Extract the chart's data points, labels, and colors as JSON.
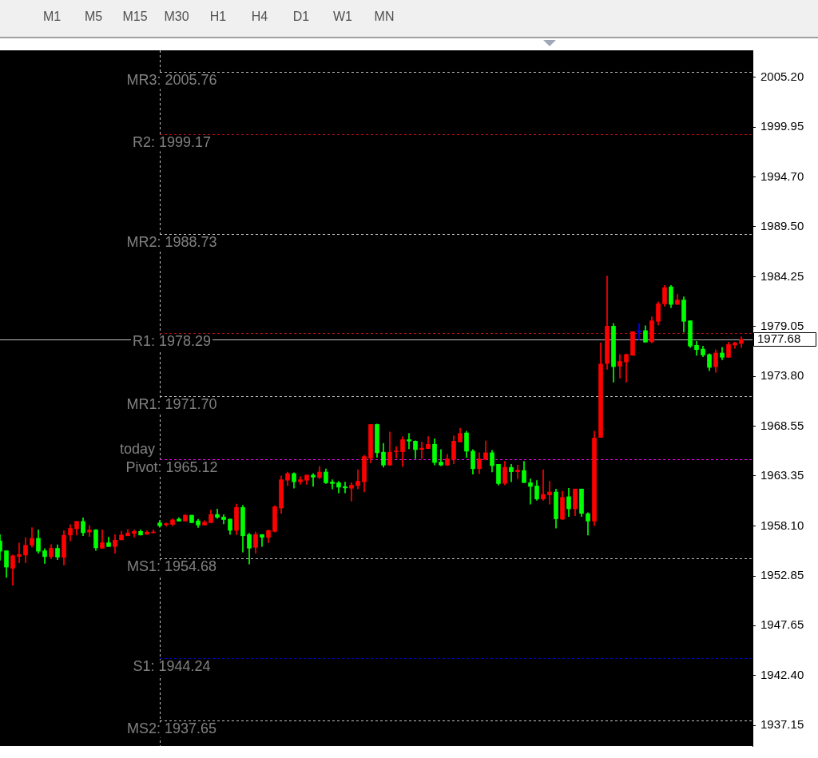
{
  "chart_data": {
    "type": "candlestick",
    "categories": [
      null,
      null,
      null,
      null,
      null,
      null,
      null,
      null,
      null,
      null,
      null,
      null,
      null,
      null,
      null,
      null,
      null,
      null,
      null,
      null,
      null,
      null,
      null,
      null,
      null,
      null,
      null,
      null,
      null,
      null,
      null,
      null,
      null,
      null,
      null,
      null,
      null,
      null,
      null,
      null,
      null,
      null,
      null,
      null,
      null,
      null,
      null,
      null,
      null,
      null,
      null,
      null,
      null,
      null,
      null,
      null,
      null,
      null,
      null,
      null,
      null,
      null,
      null,
      null,
      null,
      null,
      null,
      null,
      null,
      null,
      null,
      null,
      null,
      null,
      null,
      null,
      null,
      null,
      null,
      null,
      null,
      null,
      null,
      null,
      null,
      null,
      null,
      null,
      null,
      null,
      null,
      null,
      null,
      null,
      null,
      null,
      null,
      null,
      null,
      null,
      null,
      null,
      null,
      null,
      null,
      null,
      null,
      null,
      null,
      null,
      null,
      null,
      null,
      null,
      null,
      null,
      null
    ],
    "ohlc": [
      [
        1956.52,
        1957.19,
        1954.5,
        1955.44
      ],
      [
        1955.49,
        1955.49,
        1952.69,
        1953.77
      ],
      [
        1953.66,
        1955.04,
        1951.88,
        1954.96
      ],
      [
        1954.9,
        1956.3,
        1954.23,
        1955.09
      ],
      [
        1955.04,
        1956.87,
        1954.23,
        1956.06
      ],
      [
        1956.09,
        1957.92,
        1955.85,
        1956.79
      ],
      [
        1956.79,
        1957.68,
        1955.22,
        1955.44
      ],
      [
        1955.49,
        1955.71,
        1954.15,
        1954.87
      ],
      [
        1954.87,
        1956.14,
        1954.63,
        1955.74
      ],
      [
        1955.74,
        1956.11,
        1954.55,
        1954.82
      ],
      [
        1954.79,
        1957.6,
        1953.98,
        1957.11
      ],
      [
        1957.14,
        1958.22,
        1956.52,
        1957.84
      ],
      [
        1957.79,
        1958.57,
        1957.14,
        1958.57
      ],
      [
        1958.57,
        1958.95,
        1957.06,
        1957.38
      ],
      [
        1957.46,
        1958.14,
        1956.98,
        1957.68
      ],
      [
        1957.68,
        1957.73,
        1955.52,
        1955.79
      ],
      [
        1955.76,
        1957.68,
        1955.76,
        1956.33
      ],
      [
        1956.33,
        1956.92,
        1955.93,
        1955.93
      ],
      [
        1955.93,
        1957.19,
        1955.22,
        1956.6
      ],
      [
        1956.63,
        1957.54,
        1956.63,
        1957.14
      ],
      [
        1957.06,
        1957.73,
        1957.06,
        1957.36
      ],
      [
        1957.3,
        1957.68,
        1956.92,
        1957.52
      ],
      [
        1957.52,
        1957.68,
        1957.14,
        1957.14
      ],
      [
        1957.22,
        1957.6,
        1957.22,
        1957.44
      ],
      [
        1957.38,
        1957.68,
        1957.33,
        1957.44
      ],
      [
        1958.41,
        1958.68,
        1957.95,
        1958.11
      ],
      [
        1958.22,
        1958.41,
        1958.06,
        1958.33
      ],
      [
        1958.25,
        1958.84,
        1958.11,
        1958.73
      ],
      [
        1958.81,
        1958.97,
        1958.6,
        1958.6
      ],
      [
        1958.6,
        1959.3,
        1958.6,
        1959.22
      ],
      [
        1959.22,
        1959.22,
        1958.44,
        1958.44
      ],
      [
        1958.62,
        1958.79,
        1957.92,
        1958.19
      ],
      [
        1958.19,
        1958.65,
        1958.19,
        1958.49
      ],
      [
        1958.44,
        1959.78,
        1958.44,
        1959.3
      ],
      [
        1959.3,
        1959.87,
        1958.87,
        1959.0
      ],
      [
        1959.03,
        1959.27,
        1958.3,
        1958.76
      ],
      [
        1958.81,
        1958.81,
        1957.19,
        1957.63
      ],
      [
        1957.63,
        1960.38,
        1957.17,
        1960.03
      ],
      [
        1960.03,
        1960.27,
        1955.36,
        1957.06
      ],
      [
        1957.19,
        1957.33,
        1954.09,
        1955.76
      ],
      [
        1955.85,
        1957.46,
        1955.25,
        1957.19
      ],
      [
        1957.19,
        1957.19,
        1955.93,
        1956.9
      ],
      [
        1956.9,
        1957.68,
        1956.33,
        1957.6
      ],
      [
        1957.52,
        1960.22,
        1957.44,
        1960.11
      ],
      [
        1959.97,
        1963.35,
        1959.41,
        1962.94
      ],
      [
        1962.89,
        1963.75,
        1962.32,
        1963.59
      ],
      [
        1963.59,
        1963.67,
        1962.05,
        1962.73
      ],
      [
        1962.73,
        1963.26,
        1962.46,
        1962.94
      ],
      [
        1962.89,
        1963.43,
        1962.46,
        1963.43
      ],
      [
        1963.43,
        1963.59,
        1962.24,
        1963.21
      ],
      [
        1963.18,
        1964.32,
        1963.05,
        1963.75
      ],
      [
        1963.75,
        1964.07,
        1962.54,
        1962.62
      ],
      [
        1962.7,
        1962.94,
        1961.97,
        1962.54
      ],
      [
        1962.62,
        1962.78,
        1961.56,
        1962.16
      ],
      [
        1962.21,
        1962.7,
        1961.56,
        1962.08
      ],
      [
        1962.05,
        1962.64,
        1960.7,
        1962.37
      ],
      [
        1962.32,
        1963.99,
        1961.97,
        1962.78
      ],
      [
        1962.73,
        1965.5,
        1961.65,
        1965.37
      ],
      [
        1965.21,
        1968.74,
        1964.72,
        1968.74
      ],
      [
        1968.74,
        1968.8,
        1965.29,
        1965.77
      ],
      [
        1965.83,
        1966.75,
        1964.26,
        1964.48
      ],
      [
        1964.48,
        1967.96,
        1964.42,
        1965.83
      ],
      [
        1965.88,
        1966.42,
        1965.21,
        1965.94
      ],
      [
        1965.88,
        1967.45,
        1964.32,
        1967.15
      ],
      [
        1967.15,
        1967.8,
        1966.18,
        1966.99
      ],
      [
        1966.99,
        1967.04,
        1965.15,
        1966.1
      ],
      [
        1966.12,
        1966.91,
        1965.15,
        1966.26
      ],
      [
        1966.21,
        1967.47,
        1966.21,
        1966.66
      ],
      [
        1966.66,
        1967.23,
        1964.48,
        1964.75
      ],
      [
        1964.8,
        1966.1,
        1964.4,
        1964.48
      ],
      [
        1964.48,
        1965.61,
        1964.42,
        1965.13
      ],
      [
        1965.07,
        1967.55,
        1964.61,
        1966.99
      ],
      [
        1966.91,
        1968.36,
        1966.91,
        1967.8
      ],
      [
        1967.85,
        1968.04,
        1965.29,
        1965.94
      ],
      [
        1965.94,
        1966.1,
        1963.53,
        1964.1
      ],
      [
        1964.1,
        1965.77,
        1963.59,
        1965.13
      ],
      [
        1965.07,
        1967.01,
        1965.07,
        1965.77
      ],
      [
        1965.77,
        1966.02,
        1963.75,
        1964.42
      ],
      [
        1964.56,
        1964.56,
        1962.37,
        1962.54
      ],
      [
        1962.56,
        1964.88,
        1962.4,
        1964.24
      ],
      [
        1964.24,
        1964.56,
        1962.73,
        1963.78
      ],
      [
        1963.78,
        1964.48,
        1963.05,
        1963.94
      ],
      [
        1963.91,
        1964.88,
        1962.64,
        1962.64
      ],
      [
        1962.62,
        1963.02,
        1960.38,
        1962.24
      ],
      [
        1962.29,
        1962.86,
        1960.78,
        1960.92
      ],
      [
        1960.92,
        1963.99,
        1960.78,
        1961.4
      ],
      [
        1961.35,
        1962.78,
        1960.38,
        1961.65
      ],
      [
        1961.65,
        1961.97,
        1957.87,
        1958.84
      ],
      [
        1958.81,
        1961.73,
        1958.76,
        1961.08
      ],
      [
        1961.16,
        1962.05,
        1959.08,
        1959.89
      ],
      [
        1959.89,
        1961.97,
        1959.16,
        1961.97
      ],
      [
        1961.97,
        1961.97,
        1959.08,
        1959.41
      ],
      [
        1959.38,
        1959.49,
        1957.14,
        1958.6
      ],
      [
        1958.6,
        1968.04,
        1958.11,
        1967.31
      ],
      [
        1967.39,
        1977.3,
        1967.39,
        1975.08
      ],
      [
        1975.14,
        1984.31,
        1974.52,
        1979.05
      ],
      [
        1979.05,
        1979.32,
        1973.19,
        1974.81
      ],
      [
        1974.87,
        1976.08,
        1973.6,
        1975.35
      ],
      [
        1975.3,
        1976.14,
        1973.19,
        1976.08
      ],
      [
        1976.0,
        1978.48,
        1976.0,
        1978.48
      ],
      [
        1978.46,
        1979.32,
        1977.62,
        1978.46
      ],
      [
        1978.59,
        1979.1,
        1977.38,
        1977.38
      ],
      [
        1977.43,
        1980.05,
        1977.3,
        1979.62
      ],
      [
        1979.56,
        1981.61,
        1979.18,
        1981.4
      ],
      [
        1981.4,
        1983.34,
        1981.15,
        1983.1
      ],
      [
        1983.18,
        1983.34,
        1980.99,
        1981.34
      ],
      [
        1981.34,
        1982.39,
        1981.34,
        1981.8
      ],
      [
        1981.8,
        1982.13,
        1978.43,
        1979.56
      ],
      [
        1979.62,
        1979.62,
        1976.81,
        1976.97
      ],
      [
        1977.05,
        1977.46,
        1976.0,
        1976.59
      ],
      [
        1976.65,
        1976.97,
        1975.84,
        1976.03
      ],
      [
        1976.08,
        1976.16,
        1974.38,
        1974.73
      ],
      [
        1974.79,
        1976.57,
        1974.22,
        1976.24
      ],
      [
        1976.24,
        1976.84,
        1975.54,
        1975.79
      ],
      [
        1975.79,
        1977.38,
        1975.79,
        1977.13
      ],
      [
        1977.08,
        1977.38,
        1976.73,
        1977.3
      ],
      [
        1977.24,
        1977.94,
        1976.81,
        1977.68
      ]
    ],
    "colors": [
      "#00ff00",
      "#00ff00",
      "#ff0000",
      "#ff0000",
      "#ff0000",
      "#ff0000",
      "#00ff00",
      "#00ff00",
      "#ff0000",
      "#00ff00",
      "#ff0000",
      "#ff0000",
      "#ff0000",
      "#00ff00",
      "#ff0000",
      "#00ff00",
      "#ff0000",
      "#00ff00",
      "#ff0000",
      "#ff0000",
      "#ff0000",
      "#ff0000",
      "#00ff00",
      "#ff0000",
      "#ff0000",
      "#00ff00",
      "#ff0000",
      "#ff0000",
      "#00ff00",
      "#ff0000",
      "#00ff00",
      "#00ff00",
      "#ff0000",
      "#ff0000",
      "#00ff00",
      "#00ff00",
      "#00ff00",
      "#ff0000",
      "#00ff00",
      "#00ff00",
      "#ff0000",
      "#00ff00",
      "#ff0000",
      "#ff0000",
      "#ff0000",
      "#ff0000",
      "#00ff00",
      "#ff0000",
      "#ff0000",
      "#00ff00",
      "#ff0000",
      "#00ff00",
      "#00ff00",
      "#00ff00",
      "#00ff00",
      "#ff0000",
      "#ff0000",
      "#ff0000",
      "#ff0000",
      "#00ff00",
      "#00ff00",
      "#ff0000",
      "#ff0000",
      "#ff0000",
      "#00ff00",
      "#00ff00",
      "#ff0000",
      "#ff0000",
      "#00ff00",
      "#00ff00",
      "#ff0000",
      "#ff0000",
      "#ff0000",
      "#00ff00",
      "#00ff00",
      "#ff0000",
      "#ff0000",
      "#00ff00",
      "#00ff00",
      "#ff0000",
      "#00ff00",
      "#ff0000",
      "#00ff00",
      "#00ff00",
      "#00ff00",
      "#ff0000",
      "#ff0000",
      "#00ff00",
      "#ff0000",
      "#00ff00",
      "#ff0000",
      "#00ff00",
      "#00ff00",
      "#ff0000",
      "#ff0000",
      "#ff0000",
      "#00ff00",
      "#ff0000",
      "#ff0000",
      "#ff0000",
      "#0000ff",
      "#00ff00",
      "#ff0000",
      "#ff0000",
      "#ff0000",
      "#00ff00",
      "#ff0000",
      "#00ff00",
      "#00ff00",
      "#00ff00",
      "#00ff00",
      "#00ff00",
      "#ff0000",
      "#00ff00",
      "#ff0000",
      "#ff0000",
      "#ff0000"
    ],
    "ylim": [
      1935.0,
      2008.0
    ],
    "yticks": [
      {
        "value": 2005.2,
        "label": "2005.20"
      },
      {
        "value": 1999.95,
        "label": "1999.95"
      },
      {
        "value": 1994.7,
        "label": "1994.70"
      },
      {
        "value": 1989.5,
        "label": "1989.50"
      },
      {
        "value": 1984.25,
        "label": "1984.25"
      },
      {
        "value": 1979.05,
        "label": "1979.05"
      },
      {
        "value": 1973.8,
        "label": "1973.80"
      },
      {
        "value": 1968.55,
        "label": "1968.55"
      },
      {
        "value": 1963.35,
        "label": "1963.35"
      },
      {
        "value": 1958.1,
        "label": "1958.10"
      },
      {
        "value": 1952.85,
        "label": "1952.85"
      },
      {
        "value": 1947.65,
        "label": "1947.65"
      },
      {
        "value": 1942.4,
        "label": "1942.40"
      },
      {
        "value": 1937.15,
        "label": "1937.15"
      }
    ],
    "ref_lines": [
      {
        "axis": "y",
        "value": 2005.76,
        "label": "MR3: 2005.76",
        "color": "#c0c0c0",
        "line_style": "dashed"
      },
      {
        "axis": "y",
        "value": 1999.17,
        "label": "R2: 1999.17",
        "color": "#b01010",
        "line_style": "dashed"
      },
      {
        "axis": "y",
        "value": 1988.73,
        "label": "MR2: 1988.73",
        "color": "#c0c0c0",
        "line_style": "dashed"
      },
      {
        "axis": "y",
        "value": 1978.29,
        "label": "R1: 1978.29",
        "color": "#b01010",
        "line_style": "dashed"
      },
      {
        "axis": "y",
        "value": 1971.7,
        "label": "MR1: 1971.70",
        "color": "#c0c0c0",
        "line_style": "dashed"
      },
      {
        "axis": "y",
        "value": 1965.12,
        "label": "Pivot: 1965.12",
        "color": "#ff00ff",
        "line_style": "dashed"
      },
      {
        "axis": "y",
        "value": 1954.68,
        "label": "MS1: 1954.68",
        "color": "#c0c0c0",
        "line_style": "dashed"
      },
      {
        "axis": "y",
        "value": 1944.24,
        "label": "S1: 1944.24",
        "color": "#0000d0",
        "line_style": "dashed"
      },
      {
        "axis": "y",
        "value": 1937.65,
        "label": "MS2: 1937.65",
        "color": "#c0c0c0",
        "line_style": "dashed"
      },
      {
        "axis": "y",
        "value": 1977.68,
        "label": "1977.68",
        "color": "#c0c0c0",
        "line_style": "solid"
      }
    ],
    "annotations": [
      "M1",
      "M5",
      "M15",
      "M30",
      "H1",
      "H4",
      "D1",
      "W1",
      "MN",
      "today"
    ],
    "grid": false,
    "legend": false
  }
}
